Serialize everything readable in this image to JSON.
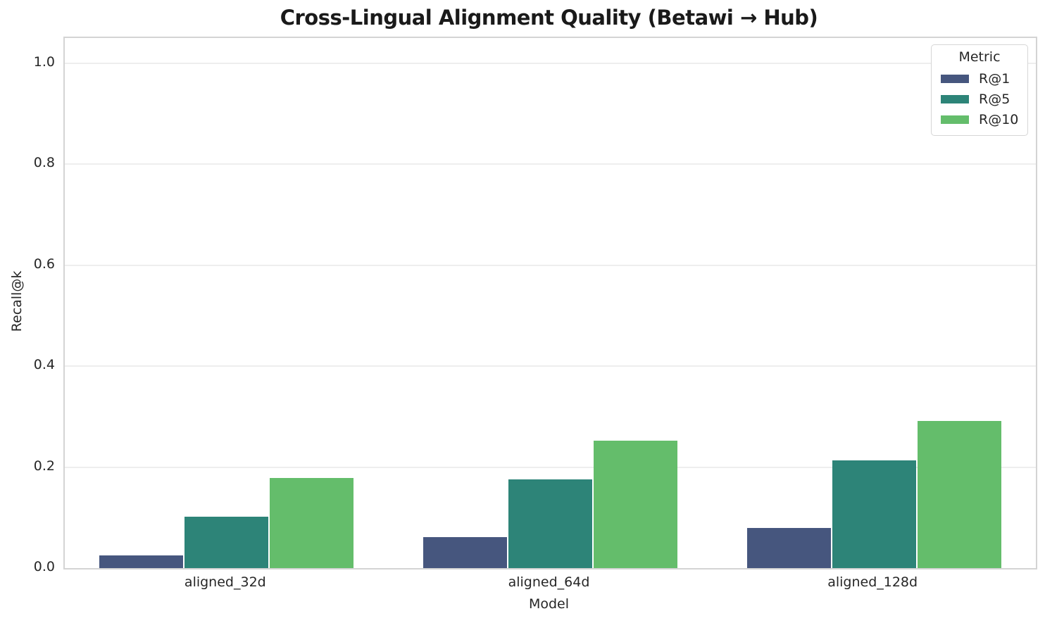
{
  "chart_data": {
    "type": "bar",
    "title": "Cross-Lingual Alignment Quality (Betawi → Hub)",
    "xlabel": "Model",
    "ylabel": "Recall@k",
    "categories": [
      "aligned_32d",
      "aligned_64d",
      "aligned_128d"
    ],
    "series": [
      {
        "name": "R@1",
        "color": "#46567e",
        "values": [
          0.025,
          0.061,
          0.08
        ]
      },
      {
        "name": "R@5",
        "color": "#2d8478",
        "values": [
          0.102,
          0.176,
          0.213
        ]
      },
      {
        "name": "R@10",
        "color": "#64bd6b",
        "values": [
          0.178,
          0.252,
          0.292
        ]
      }
    ],
    "ylim": [
      0,
      1.05
    ],
    "ytick_labels": [
      "0.0",
      "0.2",
      "0.4",
      "0.6",
      "0.8",
      "1.0"
    ],
    "ytick_values": [
      0,
      0.2,
      0.4,
      0.6,
      0.8,
      1.0
    ],
    "legend": {
      "title": "Metric",
      "position": "upper right",
      "entries": [
        "R@1",
        "R@5",
        "R@10"
      ]
    },
    "grid": true,
    "background_color": "#ffffff",
    "spine_color": "#d4d4d4",
    "grid_color": "#eeeeee"
  }
}
